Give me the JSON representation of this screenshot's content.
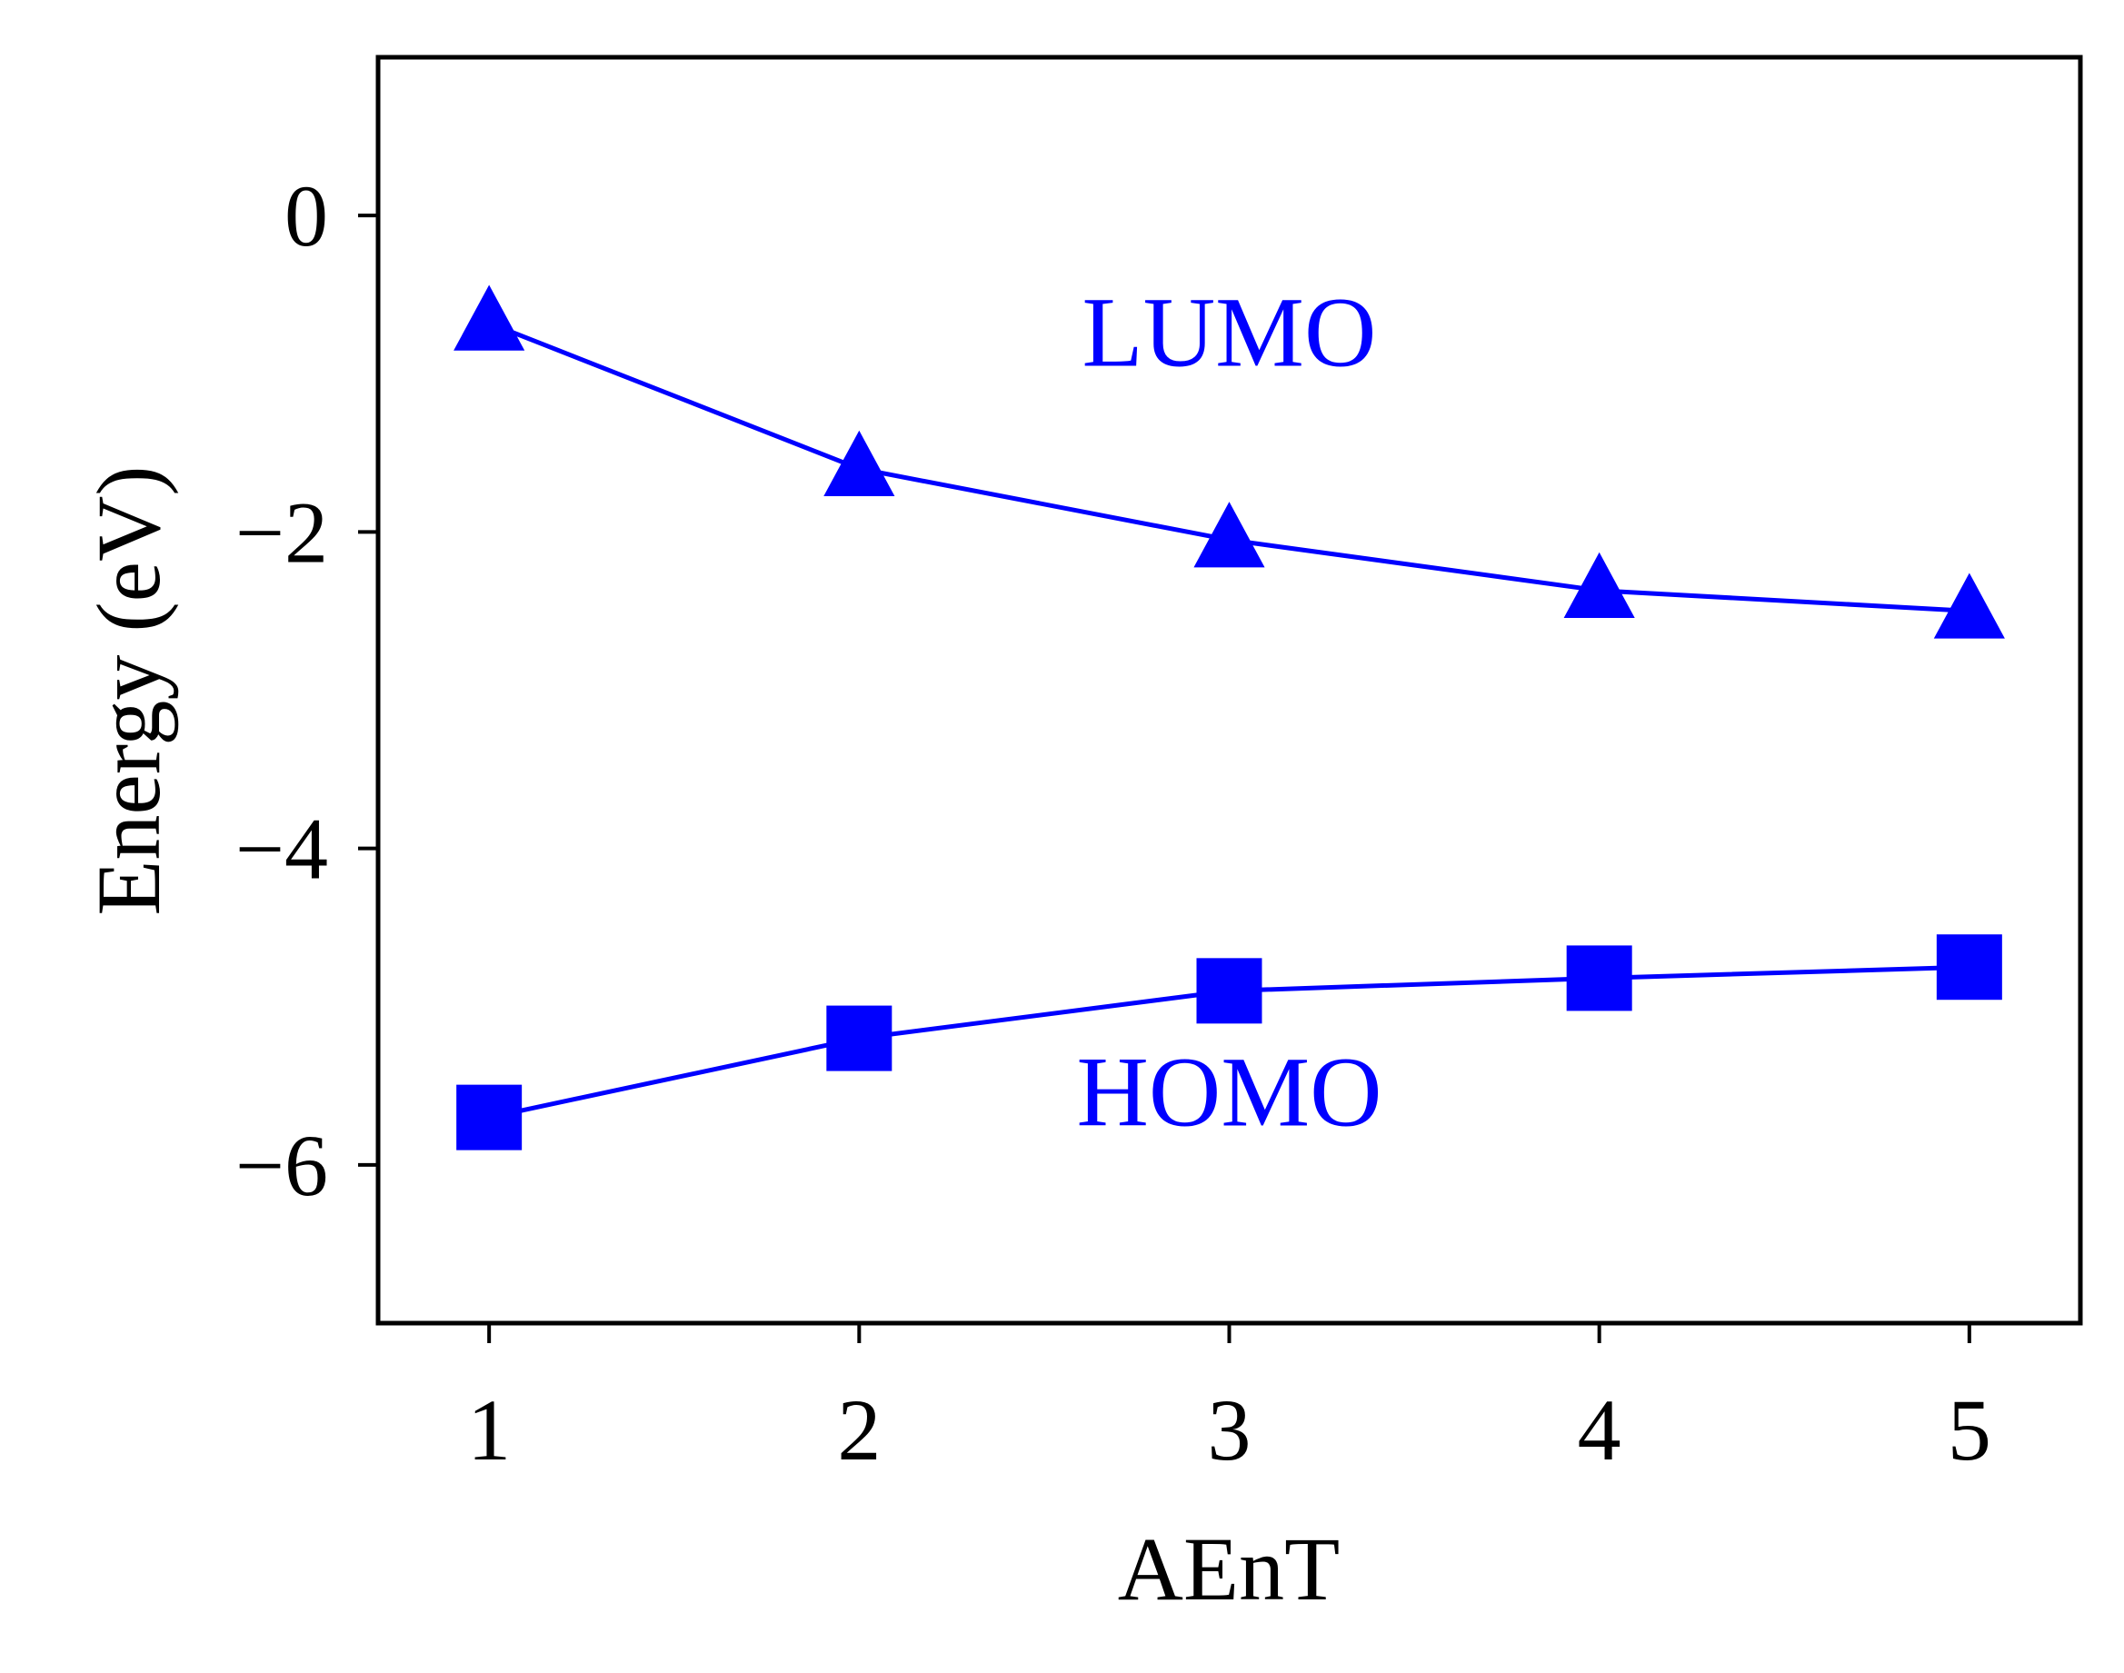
{
  "chart_data": {
    "type": "line",
    "title": "",
    "xlabel": "AEnT",
    "ylabel": "Energy (eV)",
    "x": [
      1,
      2,
      3,
      4,
      5
    ],
    "x_ticks": [
      "1",
      "2",
      "3",
      "4",
      "5"
    ],
    "xlim": [
      0.7,
      5.3
    ],
    "y_ticks": [
      0,
      -2,
      -4,
      -6
    ],
    "y_tick_labels": [
      "0",
      "−2",
      "−4",
      "−6"
    ],
    "ylim": [
      -7,
      1
    ],
    "grid": false,
    "legend": "none",
    "series": [
      {
        "marker": "triangle",
        "color": "#0000ff",
        "values": [
          -0.68,
          -1.6,
          -2.05,
          -2.37,
          -2.5
        ]
      },
      {
        "marker": "square",
        "color": "#0000ff",
        "values": [
          -5.7,
          -5.2,
          -4.9,
          -4.82,
          -4.75
        ]
      }
    ],
    "annotations": [
      {
        "text": "LUMO",
        "x": 3.0,
        "y": -0.95,
        "color": "#0000ff"
      },
      {
        "text": "HOMO",
        "x": 3.0,
        "y": -5.75,
        "color": "#0000ff"
      }
    ]
  }
}
